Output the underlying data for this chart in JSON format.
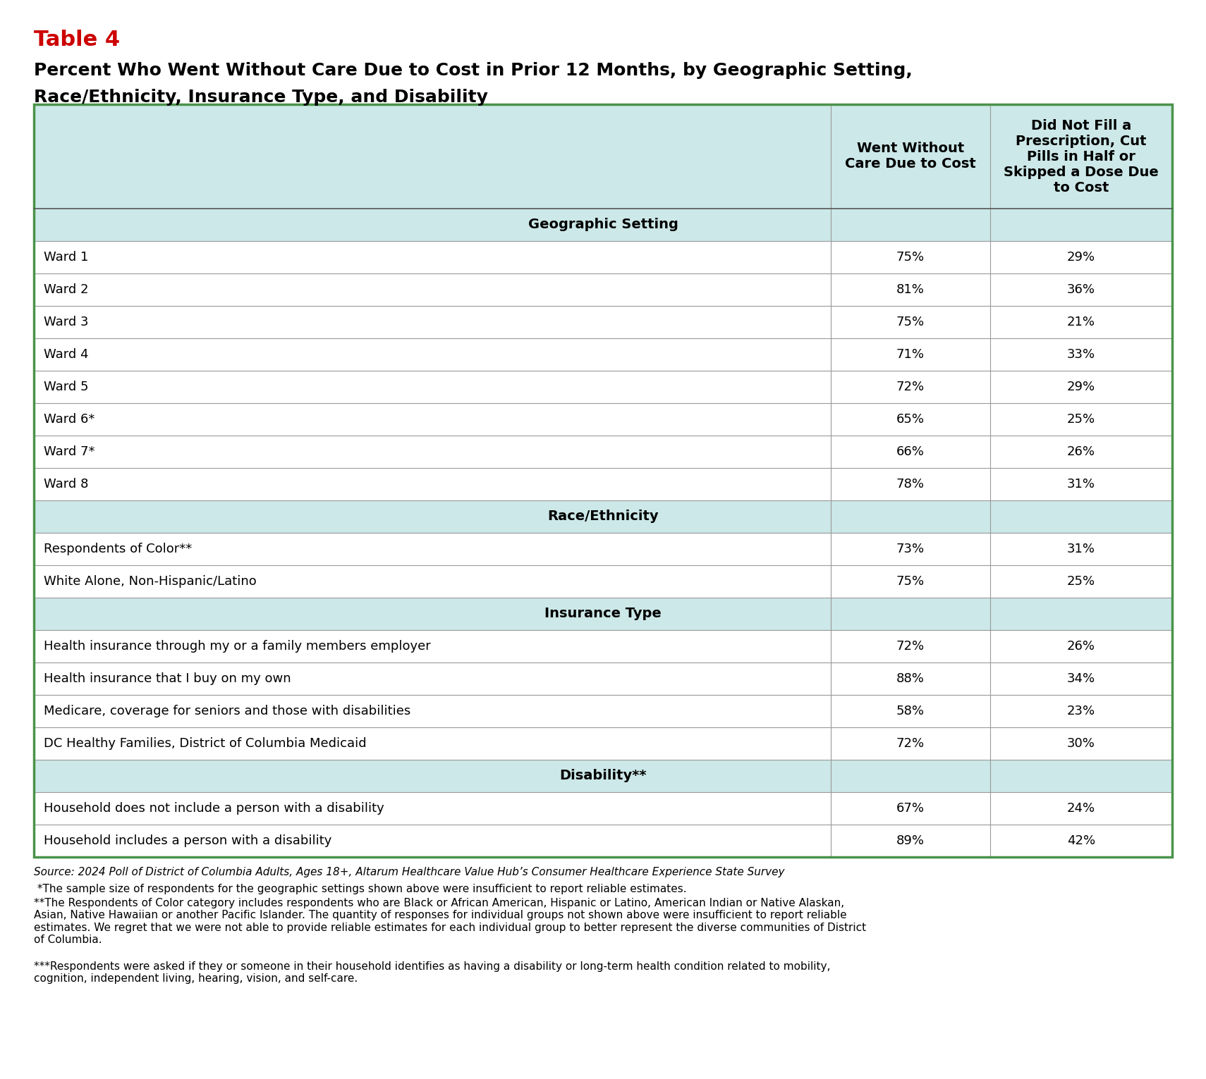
{
  "table_label": "Table 4",
  "table_label_color": "#cc0000",
  "title_line1": "Percent Who Went Without Care Due to Cost in Prior 12 Months, by Geographic Setting,",
  "title_line2": "Race/Ethnicity, Insurance Type, and Disability",
  "title_color": "#000000",
  "col1_header": "Went Without\nCare Due to Cost",
  "col2_header": "Did Not Fill a\nPrescription, Cut\nPills in Half or\nSkipped a Dose Due\nto Cost",
  "header_bg": "#cce8e8",
  "section_bg": "#cce8e8",
  "outer_border_color": "#4a934a",
  "inner_line_color": "#999999",
  "rows": [
    {
      "type": "section",
      "label": "Geographic Setting",
      "col1": "",
      "col2": ""
    },
    {
      "type": "data",
      "label": "Ward 1",
      "col1": "75%",
      "col2": "29%"
    },
    {
      "type": "data",
      "label": "Ward 2",
      "col1": "81%",
      "col2": "36%"
    },
    {
      "type": "data",
      "label": "Ward 3",
      "col1": "75%",
      "col2": "21%"
    },
    {
      "type": "data",
      "label": "Ward 4",
      "col1": "71%",
      "col2": "33%"
    },
    {
      "type": "data",
      "label": "Ward 5",
      "col1": "72%",
      "col2": "29%"
    },
    {
      "type": "data",
      "label": "Ward 6*",
      "col1": "65%",
      "col2": "25%"
    },
    {
      "type": "data",
      "label": "Ward 7*",
      "col1": "66%",
      "col2": "26%"
    },
    {
      "type": "data",
      "label": "Ward 8",
      "col1": "78%",
      "col2": "31%"
    },
    {
      "type": "section",
      "label": "Race/Ethnicity",
      "col1": "",
      "col2": ""
    },
    {
      "type": "data",
      "label": "Respondents of Color**",
      "col1": "73%",
      "col2": "31%"
    },
    {
      "type": "data",
      "label": "White Alone, Non-Hispanic/Latino",
      "col1": "75%",
      "col2": "25%"
    },
    {
      "type": "section",
      "label": "Insurance Type",
      "col1": "",
      "col2": ""
    },
    {
      "type": "data",
      "label": "Health insurance through my or a family members employer",
      "col1": "72%",
      "col2": "26%"
    },
    {
      "type": "data",
      "label": "Health insurance that I buy on my own",
      "col1": "88%",
      "col2": "34%"
    },
    {
      "type": "data",
      "label": "Medicare, coverage for seniors and those with disabilities",
      "col1": "58%",
      "col2": "23%"
    },
    {
      "type": "data",
      "label": "DC Healthy Families, District of Columbia Medicaid",
      "col1": "72%",
      "col2": "30%"
    },
    {
      "type": "section",
      "label": "Disability**",
      "col1": "",
      "col2": ""
    },
    {
      "type": "data",
      "label": "Household does not include a person with a disability",
      "col1": "67%",
      "col2": "24%"
    },
    {
      "type": "data",
      "label": "Household includes a person with a disability",
      "col1": "89%",
      "col2": "42%"
    }
  ],
  "footnote_source": "Source: 2024 Poll of District of Columbia Adults, Ages 18+, Altarum Healthcare Value Hub’s Consumer Healthcare Experience State Survey",
  "footnote1": " *The sample size of respondents for the geographic settings shown above were insufficient to report reliable estimates.",
  "footnote2": "**The Respondents of Color category includes respondents who are Black or African American, Hispanic or Latino, American Indian or Native Alaskan,\nAsian, Native Hawaiian or another Pacific Islander. The quantity of responses for individual groups not shown above were insufficient to report reliable\nestimates. We regret that we were not able to provide reliable estimates for each individual group to better represent the diverse communities of District\nof Columbia.",
  "footnote3": "***Respondents were asked if they or someone in their household identifies as having a disability or long-term health condition related to mobility,\ncognition, independent living, hearing, vision, and self-care."
}
